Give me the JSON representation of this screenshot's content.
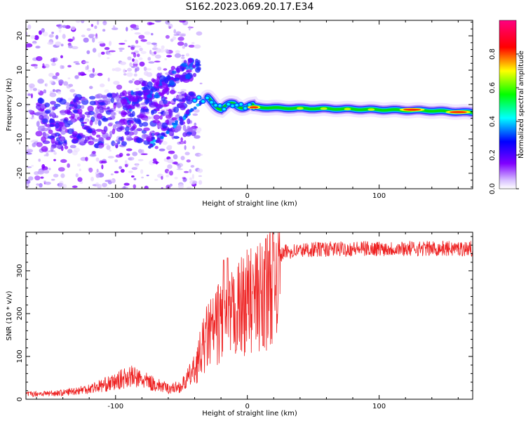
{
  "title": "S162.2023.069.20.17.E34",
  "chart_data": [
    {
      "type": "heatmap",
      "xlabel": "Height of straight line (km)",
      "ylabel": "Frequency (Hz)",
      "xlim": [
        -168,
        171
      ],
      "ylim": [
        -24.5,
        24.5
      ],
      "x_ticks": [
        -100,
        0,
        100
      ],
      "y_ticks": [
        -20,
        -10,
        0,
        10,
        20
      ],
      "grid": false,
      "colorbar": {
        "label": "Normalized spectral amplitude",
        "range": [
          0,
          1
        ],
        "ticks": [
          "0.0",
          "0.2",
          "0.4",
          "0.6",
          "0.8"
        ],
        "colors": [
          "#ffffff",
          "#8000ff",
          "#0000ff",
          "#00ffff",
          "#00ff00",
          "#ffff00",
          "#ff0000",
          "#ff0080"
        ]
      },
      "features": {
        "carrier_line": [
          [
            -30,
            1.5
          ],
          [
            -20,
            -1.0
          ],
          [
            -10,
            0.0
          ],
          [
            0,
            -0.6
          ],
          [
            20,
            -1.0
          ],
          [
            60,
            -1.2
          ],
          [
            100,
            -1.5
          ],
          [
            140,
            -1.8
          ],
          [
            170,
            -2.3
          ]
        ],
        "carrier_peaks": [
          [
            5,
            -0.8
          ],
          [
            125,
            -1.5
          ],
          [
            160,
            -2.2
          ]
        ],
        "noise_region": [
          -168,
          -35
        ]
      }
    },
    {
      "type": "line",
      "xlabel": "Height of straight line (km)",
      "ylabel": "SNR (10 * v/v)",
      "xlim": [
        -168,
        171
      ],
      "ylim": [
        0,
        390
      ],
      "x_ticks": [
        -100,
        0,
        100
      ],
      "y_ticks": [
        0,
        100,
        200,
        300
      ],
      "grid": false,
      "series": [
        {
          "color": "#ee2222",
          "envelope": [
            [
              -168,
              12
            ],
            [
              -140,
              15
            ],
            [
              -120,
              25
            ],
            [
              -100,
              40
            ],
            [
              -90,
              55
            ],
            [
              -80,
              45
            ],
            [
              -70,
              35
            ],
            [
              -60,
              25
            ],
            [
              -50,
              30
            ],
            [
              -40,
              70
            ],
            [
              -35,
              110
            ],
            [
              -30,
              150
            ],
            [
              -25,
              160
            ],
            [
              -20,
              190
            ],
            [
              -15,
              180
            ],
            [
              -10,
              200
            ],
            [
              -5,
              215
            ],
            [
              0,
              230
            ],
            [
              5,
              230
            ],
            [
              10,
              240
            ],
            [
              15,
              250
            ],
            [
              20,
              300
            ],
            [
              25,
              335
            ],
            [
              30,
              345
            ],
            [
              50,
              350
            ],
            [
              100,
              352
            ],
            [
              171,
              352
            ]
          ],
          "peaks": [
            [
              -18,
              325
            ],
            [
              -15,
              330
            ],
            [
              12,
              385
            ],
            [
              14,
              375
            ]
          ],
          "dips": [
            [
              12,
              125
            ]
          ]
        }
      ]
    }
  ]
}
